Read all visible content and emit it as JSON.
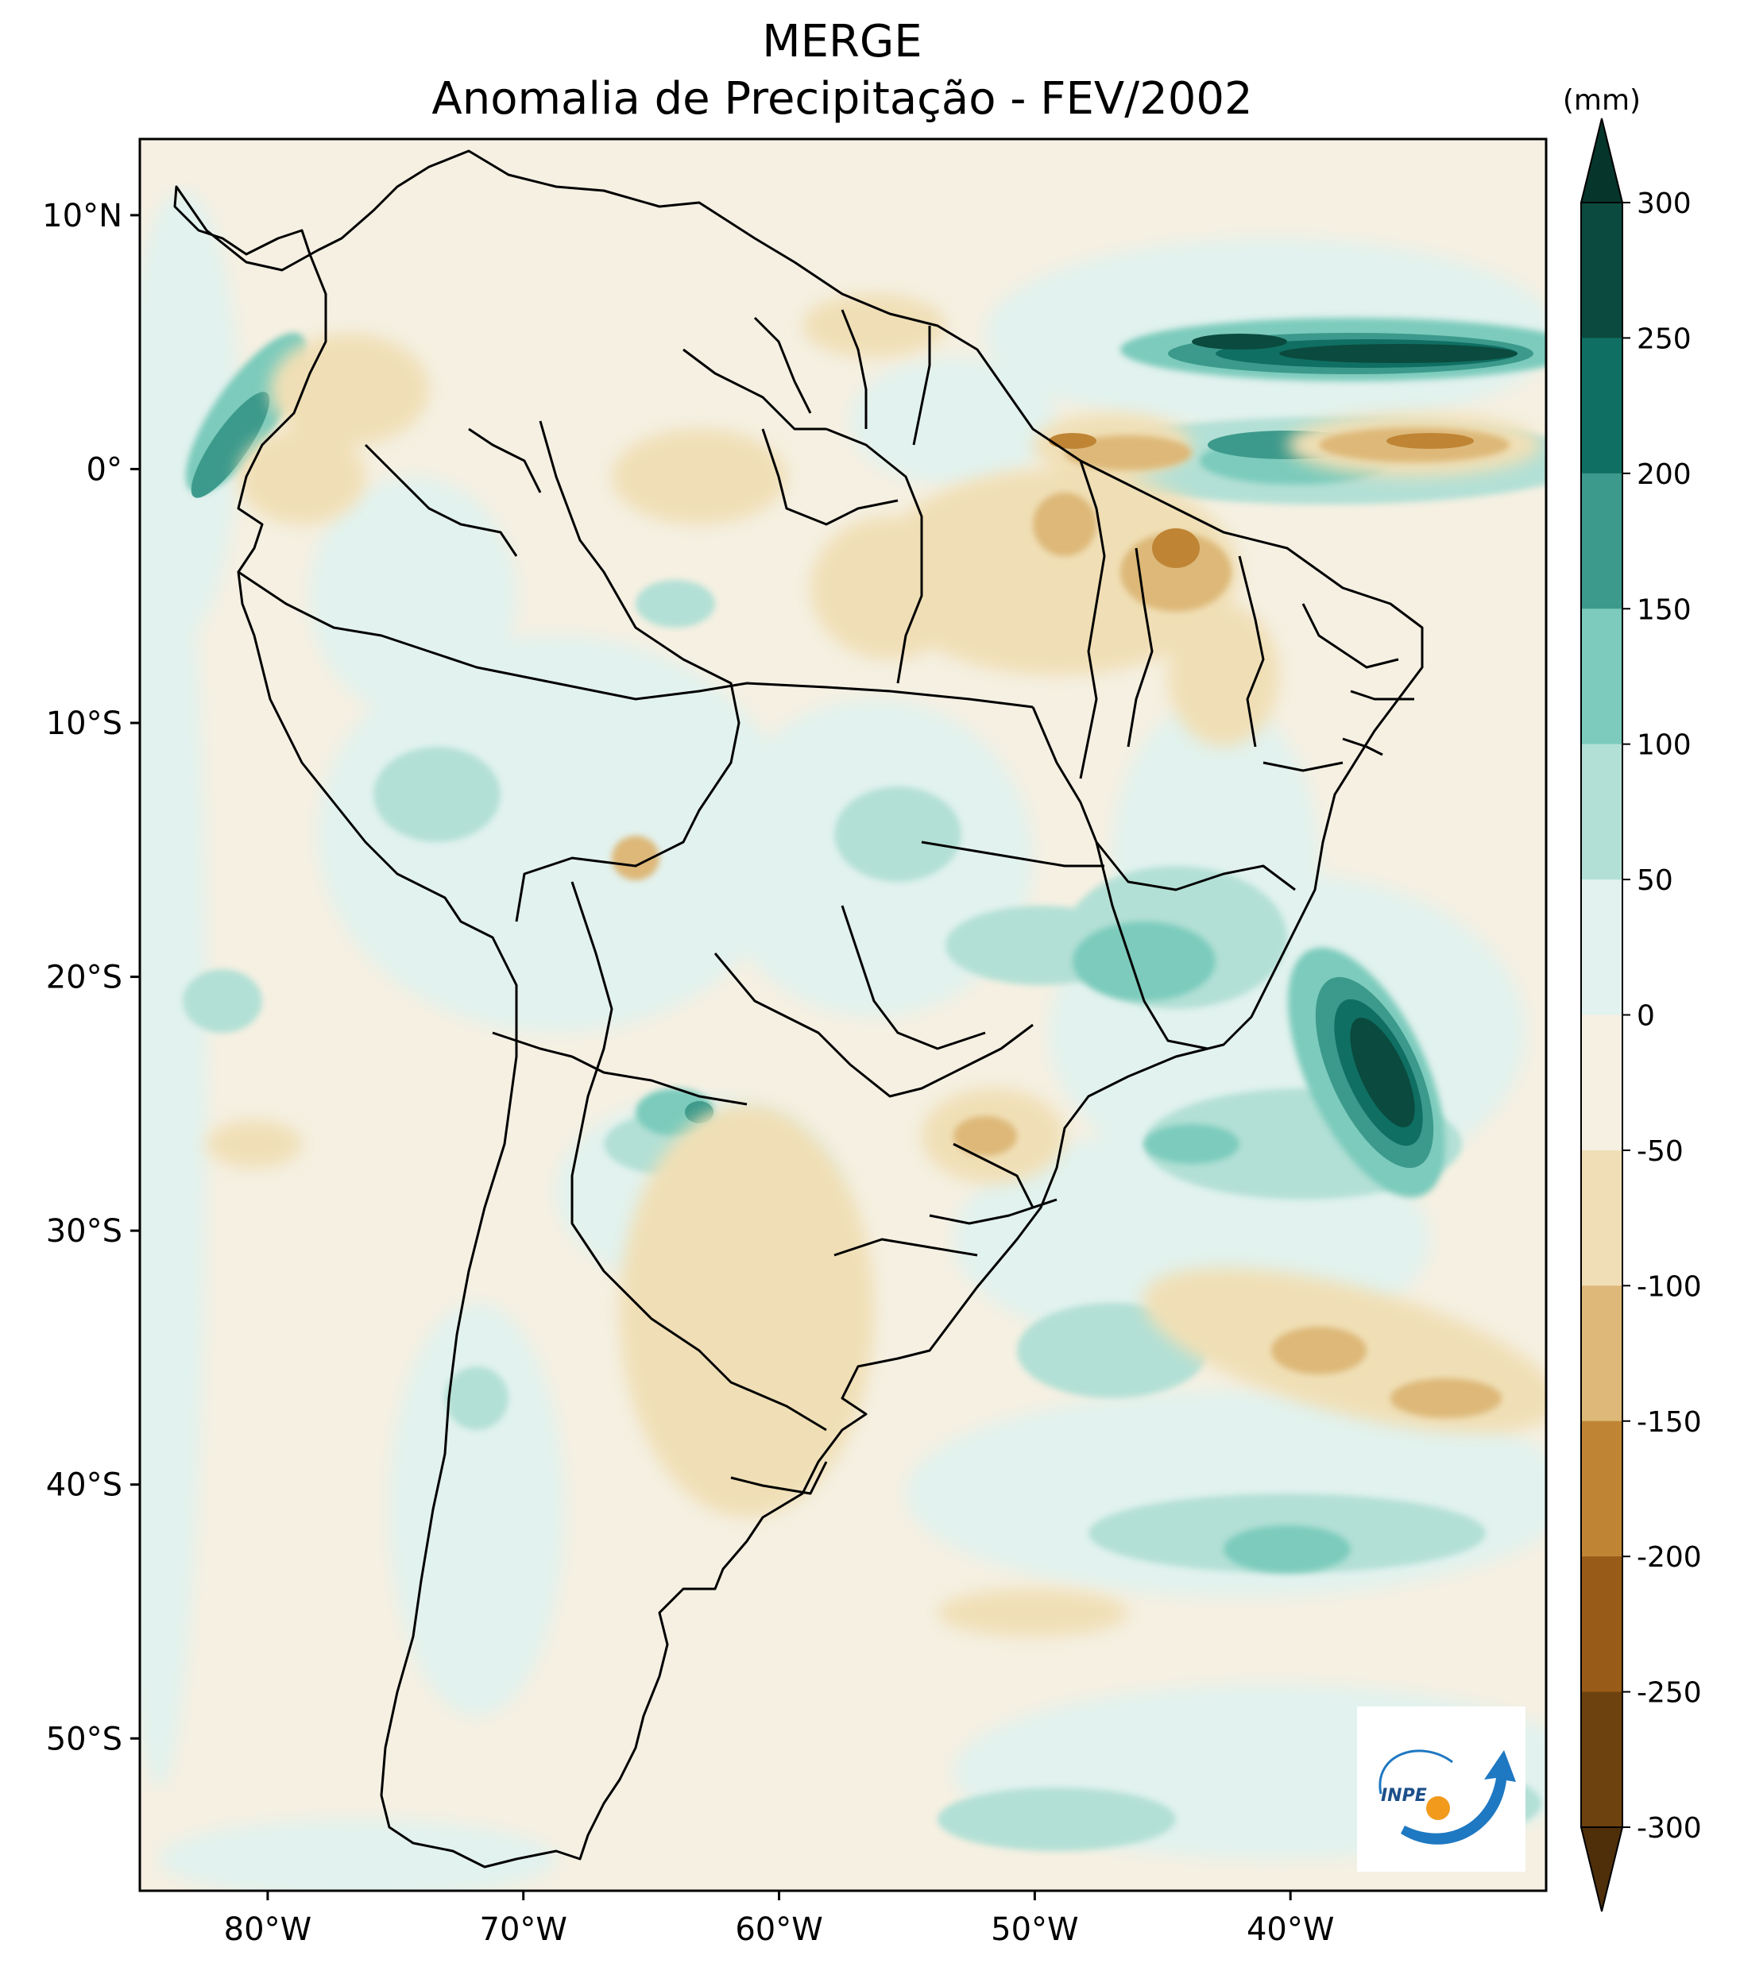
{
  "title": "MERGE",
  "subtitle": "Anomalia de Precipitação - FEV/2002",
  "axes": {
    "lon_labels": [
      "80°W",
      "70°W",
      "60°W",
      "50°W",
      "40°W"
    ],
    "lat_labels": [
      "10°N",
      "0°",
      "10°S",
      "20°S",
      "30°S",
      "40°S",
      "50°S"
    ]
  },
  "colorbar": {
    "unit": "(mm)",
    "levels": [
      "300",
      "250",
      "200",
      "150",
      "100",
      "50",
      "0",
      "-50",
      "-100",
      "-150",
      "-200",
      "-250",
      "-300"
    ],
    "colors": [
      "#0b4a3e",
      "#0f6f63",
      "#3c9a8c",
      "#7ccbbc",
      "#b3e0d6",
      "#e2f2ee",
      "#f5f0e2",
      "#f0dfb6",
      "#ddb878",
      "#bf8535",
      "#995b18",
      "#6e420e"
    ],
    "over_color": "#06352c",
    "under_color": "#4e2f0a"
  },
  "logo": {
    "text": "INPE"
  },
  "chart_data": {
    "type": "heatmap",
    "title": "MERGE",
    "subtitle": "Anomalia de Precipitação - FEV/2002",
    "variable": "Precipitation anomaly",
    "units": "mm",
    "region": "South America",
    "lon_range": [
      -85,
      -30
    ],
    "lat_range": [
      -56,
      13
    ],
    "levels": [
      -300,
      -250,
      -200,
      -150,
      -100,
      -50,
      0,
      50,
      100,
      150,
      200,
      250,
      300
    ],
    "extend": "both",
    "xticks": [
      -80,
      -70,
      -60,
      -50,
      -40
    ],
    "yticks": [
      10,
      0,
      -10,
      -20,
      -30,
      -40,
      -50
    ],
    "features": [
      {
        "name": "ITCZ positive band",
        "lon": [
          -40,
          -30
        ],
        "lat": [
          2,
          5
        ],
        "value": 300
      },
      {
        "name": "Atlantic SE Brazil positive",
        "lon": [
          -36,
          -33
        ],
        "lat": [
          -27,
          -22
        ],
        "value": 300
      },
      {
        "name": "Ecuador coast positive",
        "lon": [
          -82,
          -78
        ],
        "lat": [
          -2,
          3
        ],
        "value": 200
      },
      {
        "name": "NE Brazil coast negative",
        "lon": [
          -47,
          -40
        ],
        "lat": [
          -5,
          -1
        ],
        "value": -150
      },
      {
        "name": "Equatorial Atlantic negative",
        "lon": [
          -50,
          -30
        ],
        "lat": [
          0,
          1
        ],
        "value": -150
      },
      {
        "name": "Bolivia negative",
        "lon": [
          -66,
          -64
        ],
        "lat": [
          -17,
          -15
        ],
        "value": -100
      },
      {
        "name": "Minas Gerais positive",
        "lon": [
          -48,
          -40
        ],
        "lat": [
          -22,
          -16
        ],
        "value": 150
      },
      {
        "name": "Central Argentina negative",
        "lon": [
          -64,
          -54
        ],
        "lat": [
          -38,
          -28
        ],
        "value": -100
      },
      {
        "name": "South Atlantic negative",
        "lon": [
          -40,
          -30
        ],
        "lat": [
          -37,
          -32
        ],
        "value": -100
      },
      {
        "name": "South Atlantic positive band",
        "lon": [
          -45,
          -33
        ],
        "lat": [
          -46,
          -41
        ],
        "value": 150
      }
    ]
  }
}
